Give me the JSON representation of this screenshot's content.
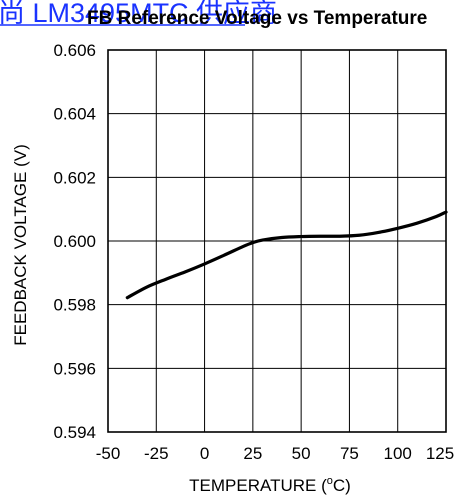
{
  "overlay_link": "尚 LM3495MTC 供应商",
  "chart_data": {
    "type": "line",
    "title": "FB Reference Voltage vs Temperature",
    "xlabel": "TEMPERATURE (",
    "xlabel_sup": "o",
    "xlabel_suffix": "C)",
    "ylabel": "FEEDBACK VOLTAGE (V)",
    "xlim": [
      -50,
      125
    ],
    "ylim": [
      0.594,
      0.606
    ],
    "x_ticks": [
      "-50",
      "-25",
      "0",
      "25",
      "50",
      "75",
      "100",
      "125"
    ],
    "y_ticks": [
      "0.594",
      "0.596",
      "0.598",
      "0.600",
      "0.602",
      "0.604",
      "0.606"
    ],
    "x_tick_values": [
      -50,
      -25,
      0,
      25,
      50,
      75,
      100,
      125
    ],
    "y_tick_values": [
      0.594,
      0.596,
      0.598,
      0.6,
      0.602,
      0.604,
      0.606
    ],
    "grid": true,
    "series": [
      {
        "color": "#000000",
        "x": [
          -40,
          -30,
          -20,
          -10,
          0,
          10,
          20,
          25,
          30,
          40,
          50,
          60,
          70,
          80,
          90,
          100,
          110,
          120,
          125
        ],
        "y": [
          0.59822,
          0.59855,
          0.5988,
          0.59903,
          0.59928,
          0.59955,
          0.59983,
          0.59995,
          0.60003,
          0.60011,
          0.60014,
          0.60015,
          0.60015,
          0.60018,
          0.60027,
          0.6004,
          0.60056,
          0.60077,
          0.60091
        ]
      }
    ]
  }
}
